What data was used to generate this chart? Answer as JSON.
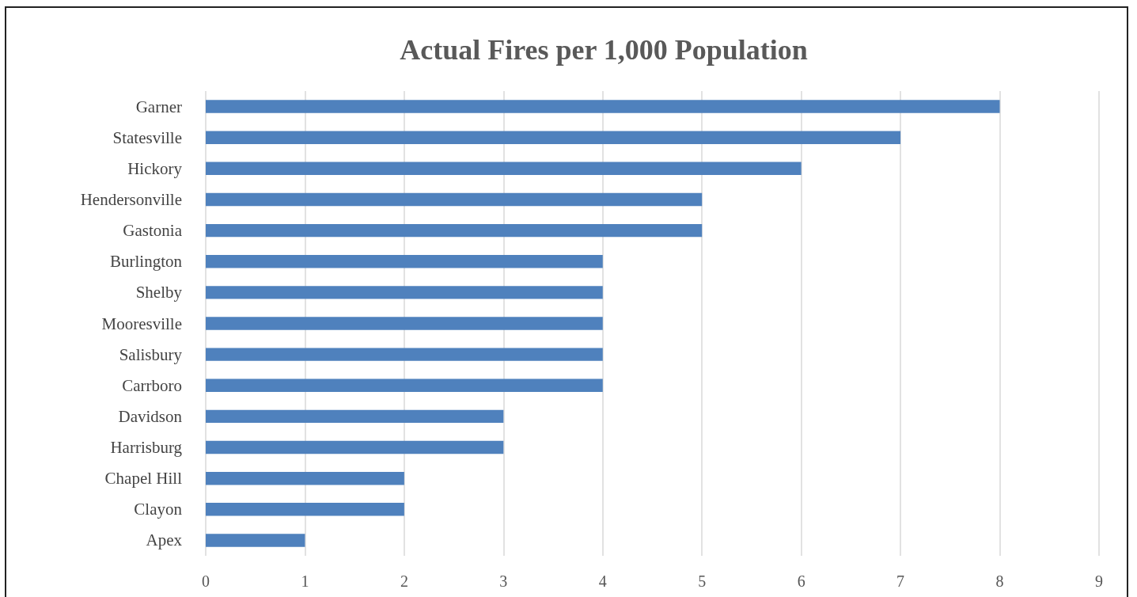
{
  "chart_data": {
    "type": "bar",
    "title": "Actual Fires per 1,000 Population",
    "orientation": "horizontal",
    "categories": [
      "Garner",
      "Statesville",
      "Hickory",
      "Hendersonville",
      "Gastonia",
      "Burlington",
      "Shelby",
      "Mooresville",
      "Salisbury",
      "Carrboro",
      "Davidson",
      "Harrisburg",
      "Chapel Hill",
      "Clayon",
      "Apex"
    ],
    "values": [
      8,
      7,
      6,
      5,
      5,
      4,
      4,
      4,
      4,
      4,
      3,
      3,
      2,
      2,
      1
    ],
    "color": "#4f81bd",
    "xlim": [
      0,
      9
    ],
    "xticks": [
      0,
      1,
      2,
      3,
      4,
      5,
      6,
      7,
      8,
      9
    ],
    "grid": "x"
  }
}
